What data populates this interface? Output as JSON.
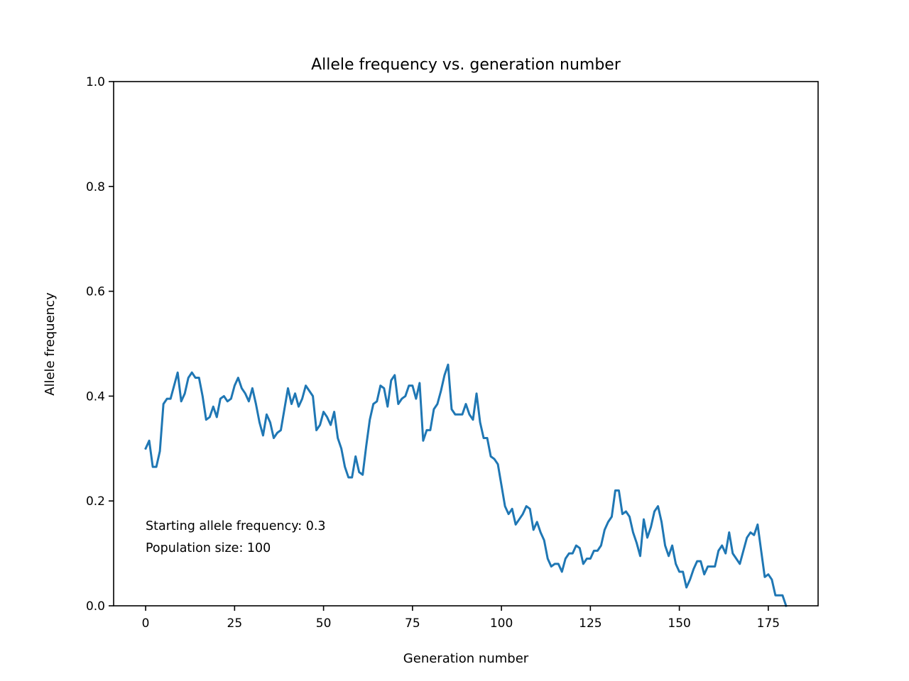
{
  "chart_data": {
    "type": "line",
    "title": "Allele frequency vs. generation number",
    "xlabel": "Generation number",
    "ylabel": "Allele frequency",
    "xlim": [
      -9,
      189
    ],
    "ylim": [
      0.0,
      1.0
    ],
    "xticks": [
      0,
      25,
      50,
      75,
      100,
      125,
      150,
      175
    ],
    "xtick_labels": [
      "0",
      "25",
      "50",
      "75",
      "100",
      "125",
      "150",
      "175"
    ],
    "yticks": [
      0.0,
      0.2,
      0.4,
      0.6,
      0.8,
      1.0
    ],
    "ytick_labels": [
      "0.0",
      "0.2",
      "0.4",
      "0.6",
      "0.8",
      "1.0"
    ],
    "grid": false,
    "legend": "none",
    "line_color": "#1f77b4",
    "annotations": [
      "Starting allele frequency: 0.3",
      "Population size: 100"
    ],
    "series": [
      {
        "x": [
          0,
          1,
          2,
          3,
          4,
          5,
          6,
          7,
          8,
          9,
          10,
          11,
          12,
          13,
          14,
          15,
          16,
          17,
          18,
          19,
          20,
          21,
          22,
          23,
          24,
          25,
          26,
          27,
          28,
          29,
          30,
          31,
          32,
          33,
          34,
          35,
          36,
          37,
          38,
          39,
          40,
          41,
          42,
          43,
          44,
          45,
          46,
          47,
          48,
          49,
          50,
          51,
          52,
          53,
          54,
          55,
          56,
          57,
          58,
          59,
          60,
          61,
          62,
          63,
          64,
          65,
          66,
          67,
          68,
          69,
          70,
          71,
          72,
          73,
          74,
          75,
          76,
          77,
          78,
          79,
          80,
          81,
          82,
          83,
          84,
          85,
          86,
          87,
          88,
          89,
          90,
          91,
          92,
          93,
          94,
          95,
          96,
          97,
          98,
          99,
          100,
          101,
          102,
          103,
          104,
          105,
          106,
          107,
          108,
          109,
          110,
          111,
          112,
          113,
          114,
          115,
          116,
          117,
          118,
          119,
          120,
          121,
          122,
          123,
          124,
          125,
          126,
          127,
          128,
          129,
          130,
          131,
          132,
          133,
          134,
          135,
          136,
          137,
          138,
          139,
          140,
          141,
          142,
          143,
          144,
          145,
          146,
          147,
          148,
          149,
          150,
          151,
          152,
          153,
          154,
          155,
          156,
          157,
          158,
          159,
          160,
          161,
          162,
          163,
          164,
          165,
          166,
          167,
          168,
          169,
          170,
          171,
          172,
          173,
          174,
          175,
          176,
          177,
          178,
          179,
          180
        ],
        "y": [
          0.3,
          0.315,
          0.265,
          0.265,
          0.295,
          0.385,
          0.395,
          0.395,
          0.42,
          0.445,
          0.39,
          0.405,
          0.435,
          0.445,
          0.435,
          0.435,
          0.4,
          0.355,
          0.36,
          0.38,
          0.36,
          0.395,
          0.4,
          0.39,
          0.395,
          0.42,
          0.435,
          0.415,
          0.405,
          0.39,
          0.415,
          0.385,
          0.35,
          0.325,
          0.365,
          0.35,
          0.32,
          0.33,
          0.335,
          0.375,
          0.415,
          0.385,
          0.405,
          0.38,
          0.395,
          0.42,
          0.41,
          0.4,
          0.335,
          0.345,
          0.37,
          0.36,
          0.345,
          0.37,
          0.32,
          0.3,
          0.265,
          0.245,
          0.245,
          0.285,
          0.255,
          0.25,
          0.305,
          0.355,
          0.385,
          0.39,
          0.42,
          0.415,
          0.38,
          0.43,
          0.44,
          0.385,
          0.395,
          0.4,
          0.42,
          0.42,
          0.395,
          0.425,
          0.315,
          0.335,
          0.335,
          0.375,
          0.385,
          0.41,
          0.44,
          0.46,
          0.375,
          0.365,
          0.365,
          0.365,
          0.385,
          0.365,
          0.355,
          0.405,
          0.35,
          0.32,
          0.32,
          0.285,
          0.28,
          0.27,
          0.23,
          0.19,
          0.175,
          0.185,
          0.155,
          0.165,
          0.175,
          0.19,
          0.185,
          0.145,
          0.16,
          0.14,
          0.125,
          0.09,
          0.075,
          0.08,
          0.08,
          0.065,
          0.09,
          0.1,
          0.1,
          0.115,
          0.11,
          0.08,
          0.09,
          0.09,
          0.105,
          0.105,
          0.115,
          0.145,
          0.16,
          0.17,
          0.22,
          0.22,
          0.175,
          0.18,
          0.17,
          0.14,
          0.12,
          0.095,
          0.165,
          0.13,
          0.15,
          0.18,
          0.19,
          0.16,
          0.115,
          0.095,
          0.115,
          0.08,
          0.065,
          0.065,
          0.035,
          0.05,
          0.07,
          0.085,
          0.085,
          0.06,
          0.075,
          0.075,
          0.075,
          0.105,
          0.115,
          0.1,
          0.14,
          0.1,
          0.09,
          0.08,
          0.105,
          0.13,
          0.14,
          0.135,
          0.155,
          0.105,
          0.055,
          0.06,
          0.05,
          0.02,
          0.02,
          0.02,
          0.0
        ]
      }
    ]
  }
}
